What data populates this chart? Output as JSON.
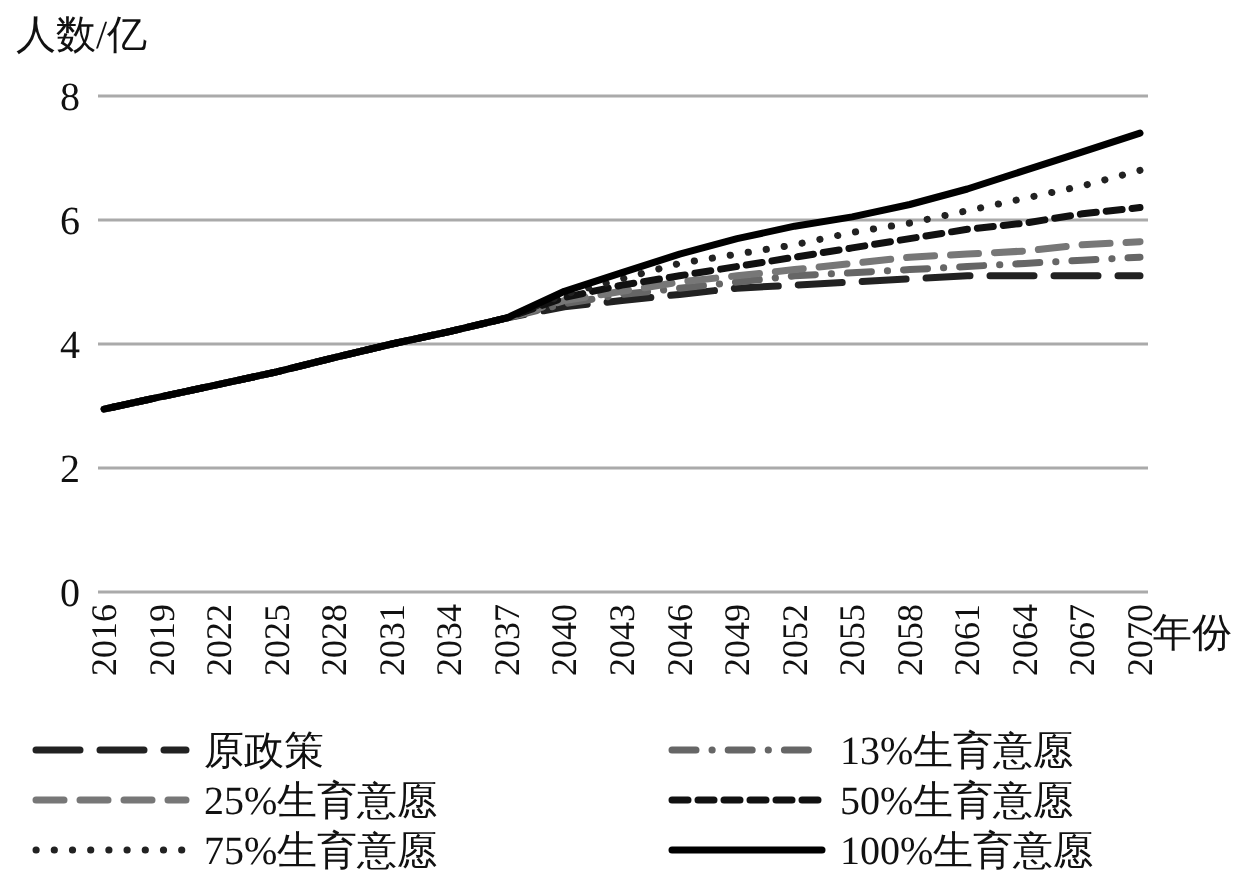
{
  "chart_data": {
    "type": "line",
    "ylabel": "人数/亿",
    "xlabel": "年份",
    "categories": [
      "2016",
      "2019",
      "2022",
      "2025",
      "2028",
      "2031",
      "2034",
      "2037",
      "2040",
      "2043",
      "2046",
      "2049",
      "2052",
      "2055",
      "2058",
      "2061",
      "2064",
      "2067",
      "2070"
    ],
    "ylim": [
      0,
      8
    ],
    "yticks": [
      0,
      2,
      4,
      6,
      8
    ],
    "grid": "y",
    "legend": "bottom",
    "marker": "none",
    "series": [
      {
        "name": "原政策",
        "color": "#222222",
        "line_style": "longdash",
        "values": [
          2.95,
          3.15,
          3.35,
          3.55,
          3.78,
          4.0,
          4.2,
          4.42,
          4.6,
          4.7,
          4.8,
          4.9,
          4.95,
          5.0,
          5.05,
          5.1,
          5.1,
          5.1,
          5.1
        ]
      },
      {
        "name": "13%生育意愿",
        "color": "#666666",
        "line_style": "dashdot",
        "values": [
          2.95,
          3.15,
          3.35,
          3.55,
          3.78,
          4.0,
          4.2,
          4.42,
          4.65,
          4.8,
          4.9,
          5.0,
          5.1,
          5.15,
          5.2,
          5.25,
          5.3,
          5.35,
          5.4
        ]
      },
      {
        "name": "25%生育意愿",
        "color": "#777777",
        "line_style": "dashed",
        "values": [
          2.95,
          3.15,
          3.35,
          3.55,
          3.78,
          4.0,
          4.2,
          4.42,
          4.7,
          4.85,
          5.0,
          5.1,
          5.2,
          5.3,
          5.4,
          5.45,
          5.5,
          5.6,
          5.65
        ]
      },
      {
        "name": "50%生育意愿",
        "color": "#111111",
        "line_style": "shortdash",
        "values": [
          2.95,
          3.15,
          3.35,
          3.55,
          3.78,
          4.0,
          4.2,
          4.42,
          4.75,
          4.95,
          5.1,
          5.25,
          5.4,
          5.55,
          5.7,
          5.85,
          5.95,
          6.1,
          6.2
        ]
      },
      {
        "name": "75%生育意愿",
        "color": "#222222",
        "line_style": "dotted",
        "values": [
          2.95,
          3.15,
          3.35,
          3.55,
          3.78,
          4.0,
          4.2,
          4.42,
          4.8,
          5.05,
          5.3,
          5.45,
          5.6,
          5.8,
          5.95,
          6.15,
          6.35,
          6.55,
          6.8
        ]
      },
      {
        "name": "100%生育意愿",
        "color": "#000000",
        "line_style": "solid",
        "values": [
          2.95,
          3.15,
          3.35,
          3.55,
          3.78,
          4.0,
          4.2,
          4.42,
          4.85,
          5.15,
          5.45,
          5.7,
          5.9,
          6.05,
          6.25,
          6.5,
          6.8,
          7.1,
          7.4
        ]
      }
    ]
  }
}
